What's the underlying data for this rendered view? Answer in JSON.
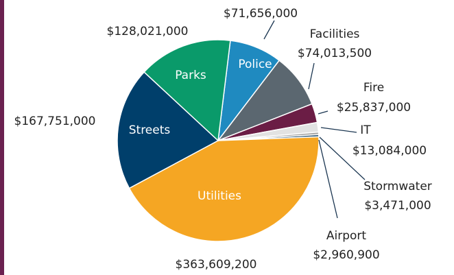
{
  "chart_data": {
    "type": "pie",
    "categories": [
      "Police",
      "Facilities",
      "Fire",
      "IT",
      "Stormwater",
      "Airport",
      "Utilities",
      "Streets",
      "Parks"
    ],
    "values": [
      71656000,
      74013500,
      25837000,
      13084000,
      3471000,
      2960900,
      363609200,
      167751000,
      128021000
    ],
    "value_labels": [
      "$71,656,000",
      "$74,013,500",
      "$25,837,000",
      "$13,084,000",
      "$3,471,000",
      "$2,960,900",
      "$363,609,200",
      "$167,751,000",
      "$128,021,000"
    ],
    "colors": [
      "#1f8ac0",
      "#5b6770",
      "#6b1d45",
      "#e2e2e2",
      "#a9a9a9",
      "#24506f",
      "#f5a623",
      "#003f6b",
      "#0a9a6a"
    ]
  }
}
